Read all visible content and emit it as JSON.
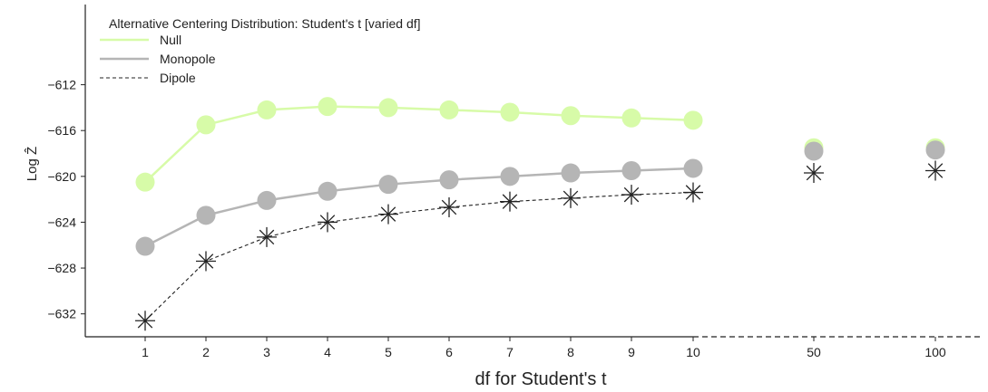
{
  "chart_data": {
    "type": "line",
    "legend_title": "Alternative Centering Distribution: Student's t [varied df]",
    "legend_position": "top-left",
    "xlabel": "df for Student's t",
    "ylabel": "Log Ẑ",
    "x_ticks": [
      "1",
      "2",
      "3",
      "4",
      "5",
      "6",
      "7",
      "8",
      "9",
      "10",
      "50",
      "100"
    ],
    "y_ticks": [
      -612,
      -616,
      -620,
      -624,
      -628,
      -632
    ],
    "ylim": [
      -634,
      -605
    ],
    "grid": false,
    "series": [
      {
        "name": "Null",
        "color": "#d7fba8",
        "line_style": "solid",
        "marker": "circle",
        "values": [
          -620.5,
          -615.5,
          -614.2,
          -613.9,
          -614.0,
          -614.2,
          -614.4,
          -614.7,
          -614.9,
          -615.1,
          -617.5,
          -617.5
        ]
      },
      {
        "name": "Monopole",
        "color": "#b5b5b5",
        "line_style": "solid",
        "marker": "circle",
        "values": [
          -626.1,
          -623.4,
          -622.1,
          -621.3,
          -620.7,
          -620.3,
          -620.0,
          -619.7,
          -619.5,
          -619.3,
          -617.8,
          -617.7
        ]
      },
      {
        "name": "Dipole",
        "color": "#222222",
        "line_style": "dashed",
        "marker": "asterisk",
        "values": [
          -632.6,
          -627.4,
          -625.3,
          -624.0,
          -623.3,
          -622.7,
          -622.2,
          -621.9,
          -621.6,
          -621.4,
          -619.7,
          -619.5
        ]
      }
    ]
  }
}
